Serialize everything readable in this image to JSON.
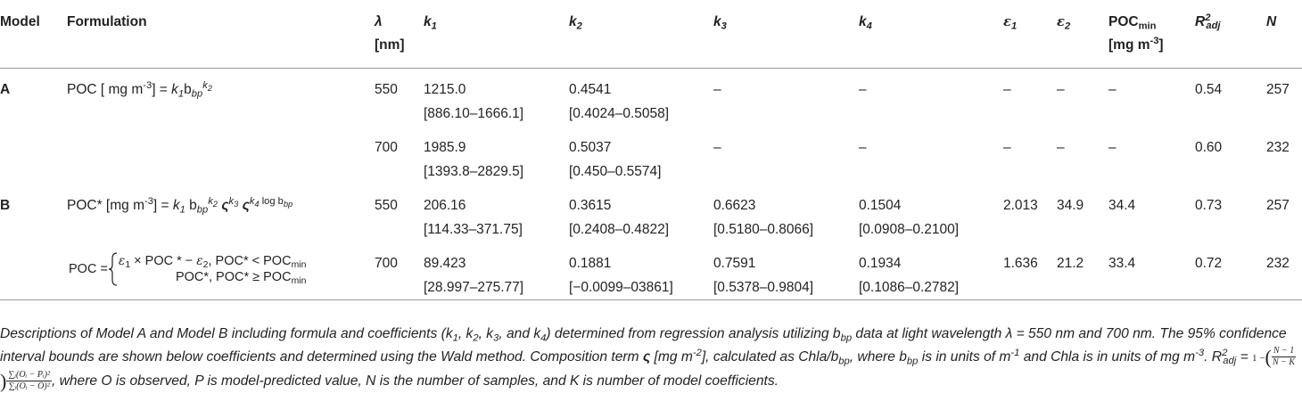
{
  "table": {
    "header": [
      [
        [
          "Model"
        ]
      ],
      [
        [
          "Formulation"
        ]
      ],
      [
        [
          {
            "text": "λ",
            "style": "i"
          }
        ],
        [
          "[nm]"
        ]
      ],
      [
        [
          {
            "text": "k",
            "style": "i"
          },
          {
            "text": "1",
            "style": "i sub"
          }
        ]
      ],
      [
        [
          {
            "text": "k",
            "style": "i"
          },
          {
            "text": "2",
            "style": "i sub"
          }
        ]
      ],
      [
        [
          {
            "text": "k",
            "style": "i"
          },
          {
            "text": "3",
            "style": "i sub"
          }
        ]
      ],
      [
        [
          {
            "text": "k",
            "style": "i"
          },
          {
            "text": "4",
            "style": "i sub"
          }
        ]
      ],
      [
        [
          {
            "text": "ε",
            "style": "i serif"
          },
          {
            "text": "1",
            "style": "i sub"
          }
        ]
      ],
      [
        [
          {
            "text": "ε",
            "style": "i serif"
          },
          {
            "text": "2",
            "style": "i sub"
          }
        ]
      ],
      [
        [
          {
            "text": "POC"
          },
          {
            "text": "min",
            "style": "sub"
          }
        ],
        [
          {
            "text": "[mg m"
          },
          {
            "text": "-3",
            "style": "sup"
          },
          {
            "text": "]"
          }
        ]
      ],
      [
        [
          {
            "text": "R",
            "style": "i"
          },
          {
            "text": "2",
            "style": "i sup"
          },
          {
            "text": "adj",
            "style": "i sub shift"
          }
        ]
      ],
      [
        [
          {
            "text": "N",
            "style": "i"
          }
        ]
      ]
    ],
    "rows": [
      {
        "cells": [
          [
            [
              "A"
            ]
          ],
          [
            [
              {
                "text": "POC [ mg m"
              },
              {
                "text": "-3",
                "style": "sup"
              },
              {
                "text": "] = "
              },
              {
                "text": "k",
                "style": "i"
              },
              {
                "text": "1",
                "style": "i sub"
              },
              {
                "text": "b"
              },
              {
                "text": "bp",
                "style": "i sub"
              },
              {
                "text": "k",
                "style": "i sup"
              },
              {
                "text": "2",
                "style": "i supsub"
              }
            ]
          ],
          [
            [
              "550"
            ]
          ],
          [
            [
              "1215.0"
            ],
            [
              "[886.10–1666.1]"
            ]
          ],
          [
            [
              "0.4541"
            ],
            [
              "[0.4024–0.5058]"
            ]
          ],
          [
            [
              "–"
            ]
          ],
          [
            [
              "–"
            ]
          ],
          [
            [
              "–"
            ]
          ],
          [
            [
              "–"
            ]
          ],
          [
            [
              "–"
            ]
          ],
          [
            [
              "0.54"
            ]
          ],
          [
            [
              "257"
            ]
          ]
        ]
      },
      {
        "cells": [
          null,
          null,
          [
            [
              "700"
            ]
          ],
          [
            [
              "1985.9"
            ],
            [
              "[1393.8–2829.5]"
            ]
          ],
          [
            [
              "0.5037"
            ],
            [
              "[0.450–0.5574]"
            ]
          ],
          [
            [
              "–"
            ]
          ],
          [
            [
              "–"
            ]
          ],
          [
            [
              "–"
            ]
          ],
          [
            [
              "–"
            ]
          ],
          [
            [
              "–"
            ]
          ],
          [
            [
              "0.60"
            ]
          ],
          [
            [
              "232"
            ]
          ]
        ]
      },
      {
        "cells": [
          [
            [
              "B"
            ]
          ],
          [
            [
              {
                "text": "POC* [mg m"
              },
              {
                "text": "-3",
                "style": "sup"
              },
              {
                "text": "] = "
              },
              {
                "text": "k",
                "style": "i"
              },
              {
                "text": "1",
                "style": "i sub"
              },
              {
                "text": " b"
              },
              {
                "text": "bp",
                "style": "i sub"
              },
              {
                "text": "k",
                "style": "i sup"
              },
              {
                "text": "2",
                "style": "i supsub"
              },
              {
                "text": " ς",
                "style": "b i"
              },
              {
                "text": "k",
                "style": "i sup"
              },
              {
                "text": "3",
                "style": "i supsub"
              },
              {
                "text": " ς",
                "style": "b i"
              },
              {
                "text": "k",
                "style": "i sup"
              },
              {
                "text": "4",
                "style": "i supsub"
              },
              {
                "text": " log b",
                "style": "sup"
              },
              {
                "text": "bp",
                "style": "i supsub"
              }
            ]
          ],
          [
            [
              "550"
            ]
          ],
          [
            [
              "206.16"
            ],
            [
              "[114.33–371.75]"
            ]
          ],
          [
            [
              "0.3615"
            ],
            [
              "[0.2408–0.4822]"
            ]
          ],
          [
            [
              "0.6623"
            ],
            [
              "[0.5180–0.8066]"
            ]
          ],
          [
            [
              "0.1504"
            ],
            [
              "[0.0908–0.2100]"
            ]
          ],
          [
            [
              "2.013"
            ]
          ],
          [
            [
              "34.9"
            ]
          ],
          [
            [
              "34.4"
            ]
          ],
          [
            [
              "0.73"
            ]
          ],
          [
            [
              "257"
            ]
          ]
        ]
      },
      {
        "cells": [
          null,
          {
            "lhs": "POC =",
            "cases": [
              [
                {
                  "text": "ε",
                  "style": "i serif"
                },
                {
                  "text": "1",
                  "style": "sub"
                },
                {
                  "text": " × POC * − "
                },
                {
                  "text": "ε",
                  "style": "i serif"
                },
                {
                  "text": "2",
                  "style": "sub"
                },
                {
                  "text": ",  POC* < POC"
                },
                {
                  "text": "min",
                  "style": "sub"
                }
              ],
              [
                {
                  "text": "POC*,  POC* ≥ POC"
                },
                {
                  "text": "min",
                  "style": "sub"
                }
              ]
            ]
          },
          [
            [
              "700"
            ]
          ],
          [
            [
              "89.423"
            ],
            [
              "[28.997–275.77]"
            ]
          ],
          [
            [
              "0.1881"
            ],
            [
              "[−0.0099–03861]"
            ]
          ],
          [
            [
              "0.7591"
            ],
            [
              "[0.5378–0.9804]"
            ]
          ],
          [
            [
              "0.1934"
            ],
            [
              "[0.1086–0.2782]"
            ]
          ],
          [
            [
              "1.636"
            ]
          ],
          [
            [
              "21.2"
            ]
          ],
          [
            [
              "33.4"
            ]
          ],
          [
            [
              "0.72"
            ]
          ],
          [
            [
              "232"
            ]
          ]
        ]
      }
    ],
    "caption": [
      {
        "text": "Descriptions of Model A and Model B including formula and coefficients ("
      },
      {
        "text": "k"
      },
      {
        "text": "1",
        "style": "sub"
      },
      {
        "text": ", k"
      },
      {
        "text": "2",
        "style": "sub"
      },
      {
        "text": ", k"
      },
      {
        "text": "3",
        "style": "sub"
      },
      {
        "text": ", and k"
      },
      {
        "text": "4",
        "style": "sub"
      },
      {
        "text": ") determined from regression analysis utilizing b"
      },
      {
        "text": "bp",
        "style": "sub"
      },
      {
        "text": " data at light wavelength λ = 550 nm and 700 nm. The 95% confidence interval bounds are shown below coefficients and determined using the Wald method. Composition term "
      },
      {
        "text": "ς",
        "style": "b"
      },
      {
        "text": " [mg m"
      },
      {
        "text": "-2",
        "style": "sup"
      },
      {
        "text": "], calculated as Chla/b"
      },
      {
        "text": "bp",
        "style": "sub"
      },
      {
        "text": ", where b"
      },
      {
        "text": "bp",
        "style": "sub"
      },
      {
        "text": " is in units of m"
      },
      {
        "text": "-1",
        "style": "sup"
      },
      {
        "text": " and Chla is in units of mg m"
      },
      {
        "text": "-3",
        "style": "sup"
      },
      {
        "text": ". R"
      },
      {
        "text": "2",
        "style": "sup"
      },
      {
        "text": "adj",
        "style": "sub shift"
      },
      {
        "text": " = "
      },
      {
        "formula": {
          "lead": "1 −",
          "open": "(",
          "frac1": {
            "num": "N − 1",
            "den": "N − K"
          },
          "close": ")",
          "frac2": {
            "num": "∑ᵢ(Oᵢ − Pᵢ)²",
            "den": "∑ᵢ(Oᵢ − Ō)²"
          }
        }
      },
      {
        "text": ", where O is observed, P is model-predicted value, N is the number of samples, and K is number of model coefficients."
      }
    ]
  }
}
